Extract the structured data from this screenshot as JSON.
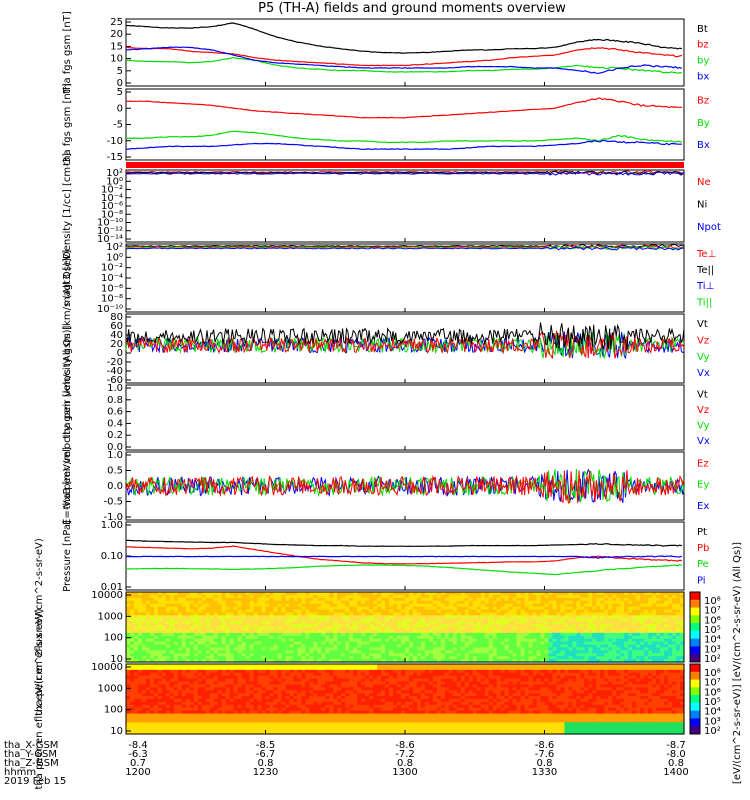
{
  "title": "P5 (TH-A) fields and ground moments overview",
  "colors": {
    "black": "#000000",
    "red": "#ff0000",
    "green": "#00dd00",
    "blue": "#0000ff",
    "yellow": "#e8e000"
  },
  "chart_data": [
    {
      "type": "line",
      "panel": "fgs-gsm",
      "ylabel": "tha fgs gsm [nT]",
      "yticks": [
        "25",
        "20",
        "15",
        "10",
        "5",
        "0"
      ],
      "ylim": [
        0,
        26
      ],
      "legend": [
        {
          "label": "Bt",
          "color": "black"
        },
        {
          "label": "bz",
          "color": "red"
        },
        {
          "label": "by",
          "color": "green"
        },
        {
          "label": "bx",
          "color": "blue"
        }
      ],
      "series": [
        {
          "name": "Bt",
          "color": "black",
          "values": [
            23.5,
            23,
            22.5,
            22.5,
            23,
            24.5,
            22,
            19,
            17,
            15.5,
            14.5,
            13.5,
            13,
            12.8,
            13,
            13.5,
            14,
            14,
            14.5,
            14.5,
            15,
            17,
            18,
            17.5,
            16.5,
            15,
            14.5
          ]
        },
        {
          "name": "bz",
          "color": "red",
          "values": [
            15,
            14.5,
            14.5,
            13.5,
            13,
            12.5,
            11,
            10,
            9.5,
            9,
            8.5,
            8,
            8,
            8,
            8.5,
            9,
            9.5,
            10,
            11,
            11.5,
            12,
            14,
            15,
            14,
            13,
            12,
            11.5
          ]
        },
        {
          "name": "by",
          "color": "green",
          "values": [
            10,
            9.5,
            9.5,
            9,
            9.5,
            11,
            10,
            8,
            7,
            6.5,
            6,
            6,
            5.5,
            5.5,
            5.5,
            5.5,
            6,
            6,
            6.5,
            6.5,
            7,
            8,
            7,
            7,
            6,
            5.5,
            5
          ]
        },
        {
          "name": "bx",
          "color": "blue",
          "values": [
            14,
            14.5,
            15,
            15,
            14,
            12,
            10,
            9,
            8.5,
            8,
            7.5,
            7,
            7,
            7,
            7,
            7,
            7.5,
            7.5,
            7.5,
            7,
            7,
            6,
            5,
            7,
            8,
            7.5,
            7
          ]
        }
      ]
    },
    {
      "type": "line",
      "panel": "fgs-gsm-2",
      "ylabel": "tha fgs gsm [nT]",
      "yticks": [
        "5",
        "0",
        "-5",
        "-10",
        "-15"
      ],
      "ylim": [
        -18,
        8
      ],
      "legend": [
        {
          "label": "Bz",
          "color": "red"
        },
        {
          "label": "By",
          "color": "green"
        },
        {
          "label": "Bx",
          "color": "blue"
        }
      ],
      "series": [
        {
          "name": "Bz",
          "color": "red",
          "values": [
            3.5,
            3.5,
            3,
            2.5,
            2,
            1,
            0,
            -0.5,
            -1,
            -1.5,
            -2,
            -2.5,
            -2.5,
            -2.5,
            -2,
            -1.5,
            -1,
            -0.5,
            0,
            0.5,
            1,
            3,
            4.5,
            3.5,
            2,
            1.5,
            1
          ]
        },
        {
          "name": "By",
          "color": "green",
          "values": [
            -10,
            -10,
            -9.5,
            -9.5,
            -9,
            -7.5,
            -8,
            -9,
            -10,
            -10.5,
            -11,
            -11,
            -11.5,
            -11.5,
            -11.5,
            -11,
            -11,
            -11,
            -11,
            -11,
            -10.5,
            -10,
            -11,
            -9,
            -10.5,
            -11,
            -11.5
          ]
        },
        {
          "name": "Bx",
          "color": "blue",
          "values": [
            -14,
            -13.5,
            -13,
            -13,
            -13,
            -12.5,
            -12,
            -12,
            -12.5,
            -13,
            -13.5,
            -14,
            -14,
            -14,
            -14,
            -14,
            -13.5,
            -13,
            -13,
            -13,
            -12.5,
            -12,
            -11,
            -11.5,
            -11.5,
            -12,
            -12.5
          ]
        }
      ]
    },
    {
      "type": "line",
      "panel": "density",
      "ylabel": "Density [1/cc] [cm-3]",
      "log_scale": true,
      "yticks": [
        "10²",
        "10⁰",
        "10⁻²",
        "10⁻⁴",
        "10⁻⁶",
        "10⁻⁸",
        "10⁻¹⁰",
        "10⁻¹²",
        "10⁻¹⁴"
      ],
      "legend": [
        {
          "label": "Ne",
          "color": "red"
        },
        {
          "label": "Ni",
          "color": "black"
        },
        {
          "label": "Npot",
          "color": "blue"
        }
      ]
    },
    {
      "type": "line",
      "panel": "temperature",
      "ylabel": "magt3 [eV]",
      "log_scale": true,
      "yticks": [
        "10²",
        "10⁰",
        "10⁻²",
        "10⁻⁴",
        "10⁻⁶",
        "10⁻⁸",
        "10⁻¹⁰"
      ],
      "legend": [
        {
          "label": "Te⊥",
          "color": "red"
        },
        {
          "label": "Te||",
          "color": "black"
        },
        {
          "label": "Ti⊥",
          "color": "blue"
        },
        {
          "label": "Ti||",
          "color": "green"
        }
      ]
    },
    {
      "type": "line",
      "panel": "peir-velocity",
      "ylabel": "tha peir velocity gsm [km/s (All Qs)]",
      "yticks": [
        "80",
        "60",
        "40",
        "20",
        "0",
        "-20",
        "-40",
        "-60"
      ],
      "ylim": [
        -65,
        85
      ],
      "legend": [
        {
          "label": "Vt",
          "color": "black"
        },
        {
          "label": "Vz",
          "color": "red"
        },
        {
          "label": "Vy",
          "color": "green"
        },
        {
          "label": "Vx",
          "color": "blue"
        }
      ]
    },
    {
      "type": "line",
      "panel": "peer-velocity",
      "ylabel": "tha peer velocity gsm [km/s (All Qs)]",
      "yticks": [
        "1.0",
        "0.8",
        "0.6",
        "0.4",
        "0.2",
        "0.0"
      ],
      "ylim": [
        0,
        1
      ],
      "legend": [
        {
          "label": "Vt",
          "color": "black"
        },
        {
          "label": "Vz",
          "color": "red"
        },
        {
          "label": "Vy",
          "color": "green"
        },
        {
          "label": "Vx",
          "color": "blue"
        }
      ]
    },
    {
      "type": "line",
      "panel": "efield",
      "ylabel": "E=-VxB [mV/m]",
      "yticks": [
        "1.0",
        "0.5",
        "0.0",
        "-0.5",
        "-1.0"
      ],
      "ylim": [
        -1,
        1
      ],
      "legend": [
        {
          "label": "Ez",
          "color": "red"
        },
        {
          "label": "Ey",
          "color": "green"
        },
        {
          "label": "Ex",
          "color": "blue"
        }
      ]
    },
    {
      "type": "line",
      "panel": "pressure",
      "ylabel": "Pressure [nPa]",
      "log_scale": true,
      "yticks": [
        "1.00",
        "0.10",
        "0.01"
      ],
      "legend": [
        {
          "label": "Pt",
          "color": "black"
        },
        {
          "label": "Pb",
          "color": "red"
        },
        {
          "label": "Pe",
          "color": "green"
        },
        {
          "label": "Pi",
          "color": "blue"
        }
      ],
      "series": [
        {
          "name": "Pt",
          "color": "black",
          "values": [
            0.35,
            0.33,
            0.32,
            0.31,
            0.3,
            0.3,
            0.28,
            0.26,
            0.25,
            0.24,
            0.24,
            0.23,
            0.23,
            0.23,
            0.23,
            0.23,
            0.24,
            0.24,
            0.24,
            0.24,
            0.25,
            0.26,
            0.27,
            0.26,
            0.25,
            0.24,
            0.24
          ]
        },
        {
          "name": "Pb",
          "color": "red",
          "values": [
            0.22,
            0.21,
            0.2,
            0.19,
            0.2,
            0.23,
            0.18,
            0.14,
            0.11,
            0.09,
            0.08,
            0.07,
            0.066,
            0.065,
            0.066,
            0.068,
            0.07,
            0.072,
            0.075,
            0.075,
            0.08,
            0.1,
            0.11,
            0.1,
            0.09,
            0.085,
            0.08
          ]
        },
        {
          "name": "Pe",
          "color": "green",
          "values": [
            0.045,
            0.046,
            0.047,
            0.046,
            0.045,
            0.044,
            0.045,
            0.047,
            0.05,
            0.055,
            0.058,
            0.06,
            0.06,
            0.058,
            0.055,
            0.05,
            0.045,
            0.04,
            0.036,
            0.033,
            0.03,
            0.035,
            0.04,
            0.045,
            0.05,
            0.055,
            0.06
          ]
        },
        {
          "name": "Pi",
          "color": "blue",
          "values": [
            0.11,
            0.11,
            0.11,
            0.11,
            0.11,
            0.11,
            0.11,
            0.11,
            0.11,
            0.11,
            0.11,
            0.11,
            0.11,
            0.11,
            0.11,
            0.11,
            0.11,
            0.11,
            0.11,
            0.11,
            0.11,
            0.11,
            0.1,
            0.11,
            0.11,
            0.11,
            0.11
          ]
        }
      ]
    },
    {
      "type": "heatmap",
      "panel": "peir-en-eflux",
      "ylabel": "tha peir en eflux eV/(cm^2-s-sr-eV)",
      "log_scale": true,
      "yticks": [
        "10000",
        "1000",
        "100",
        "10"
      ],
      "colorbar_ticks": [
        "10⁸",
        "10⁷",
        "10⁶",
        "10⁵",
        "10⁴",
        "10³",
        "10²"
      ]
    },
    {
      "type": "heatmap",
      "panel": "peer-en-eflux",
      "ylabel": "tha peer en eflux eV/(cm^2-s-sr-eV)",
      "log_scale": true,
      "yticks": [
        "10000",
        "1000",
        "100",
        "10"
      ],
      "colorbar_ticks": [
        "10⁸",
        "10⁷",
        "10⁶",
        "10⁵",
        "10⁴",
        "10³",
        "10²"
      ]
    }
  ],
  "colorbar_label": "[eV/(cm^2-s-sr-eV)] [eV/(cm^2-s-sr-eV) (All Qs)]",
  "xaxis": {
    "row_labels": [
      "tha_X-GSM",
      "tha_Y-GSM",
      "tha_Z-GSM",
      "hhmm",
      "2019 Feb 15"
    ],
    "columns": [
      {
        "x": "-8.4",
        "y": "-6.3",
        "z": "0.7",
        "t": "1200"
      },
      {
        "x": "-8.5",
        "y": "-6.7",
        "z": "0.8",
        "t": "1230"
      },
      {
        "x": "-8.6",
        "y": "-7.2",
        "z": "0.8",
        "t": "1300"
      },
      {
        "x": "-8.6",
        "y": "-7.6",
        "z": "0.8",
        "t": "1330"
      },
      {
        "x": "-8.7",
        "y": "-8.0",
        "z": "0.8",
        "t": "1400"
      }
    ]
  }
}
